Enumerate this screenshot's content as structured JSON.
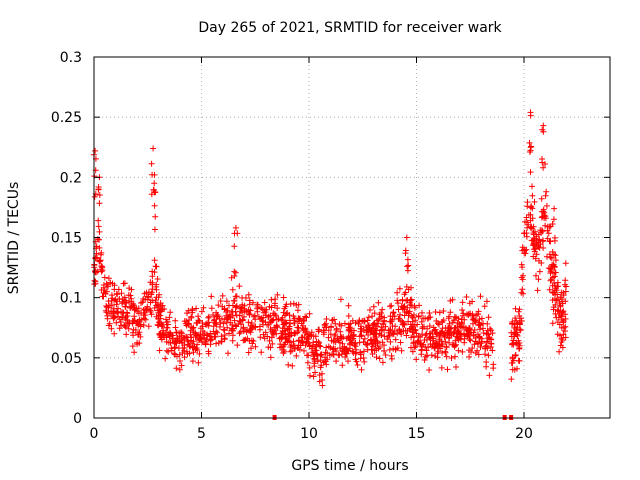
{
  "chart_data": {
    "type": "scatter",
    "title": "Day 265 of 2021, SRMTID for receiver wark",
    "xlabel": "GPS time / hours",
    "ylabel": "SRMTID / TECUs",
    "xlim": [
      0,
      24
    ],
    "ylim": [
      0,
      0.3
    ],
    "x_ticks": [
      0,
      5,
      10,
      15,
      20
    ],
    "x_tick_labels": [
      "0",
      "5",
      "10",
      "15",
      "20"
    ],
    "y_ticks": [
      0,
      0.05,
      0.1,
      0.15,
      0.2,
      0.25,
      0.3
    ],
    "y_tick_labels": [
      "0",
      "0.05",
      "0.1",
      "0.15",
      "0.2",
      "0.25",
      "0.3"
    ],
    "grid": true,
    "marker": "+",
    "color": "#ff0000",
    "series": [
      {
        "name": "SRMTID",
        "envelope": {
          "description": "approximate typical level of the scatter cloud (hour -> TECU)",
          "x": [
            0,
            0.2,
            0.5,
            1,
            1.5,
            2,
            2.5,
            2.8,
            3,
            3.5,
            4,
            5,
            6,
            6.5,
            7,
            8,
            9,
            10,
            10.5,
            11,
            12,
            13,
            14,
            14.5,
            15,
            16,
            17,
            18,
            18.6
          ],
          "y": [
            0.12,
            0.14,
            0.1,
            0.09,
            0.085,
            0.08,
            0.09,
            0.12,
            0.08,
            0.07,
            0.065,
            0.07,
            0.075,
            0.085,
            0.075,
            0.08,
            0.075,
            0.065,
            0.055,
            0.065,
            0.065,
            0.07,
            0.075,
            0.09,
            0.07,
            0.065,
            0.075,
            0.07,
            0.06
          ]
        },
        "envelope_late": {
          "x": [
            19.4,
            19.8,
            20,
            20.3,
            20.6,
            21,
            21.3,
            21.6,
            22
          ],
          "y": [
            0.06,
            0.07,
            0.15,
            0.17,
            0.13,
            0.17,
            0.12,
            0.09,
            0.09
          ]
        },
        "peaks": [
          {
            "x": 0.05,
            "y": 0.222
          },
          {
            "x": 0.25,
            "y": 0.2
          },
          {
            "x": 2.75,
            "y": 0.224
          },
          {
            "x": 2.8,
            "y": 0.195
          },
          {
            "x": 6.6,
            "y": 0.158
          },
          {
            "x": 14.55,
            "y": 0.15
          },
          {
            "x": 20.3,
            "y": 0.254
          },
          {
            "x": 20.9,
            "y": 0.243
          },
          {
            "x": 21.4,
            "y": 0.174
          }
        ],
        "zero_points": [
          {
            "x": 8.4,
            "y": 0
          },
          {
            "x": 19.1,
            "y": 0
          },
          {
            "x": 19.4,
            "y": 0
          }
        ]
      }
    ]
  }
}
